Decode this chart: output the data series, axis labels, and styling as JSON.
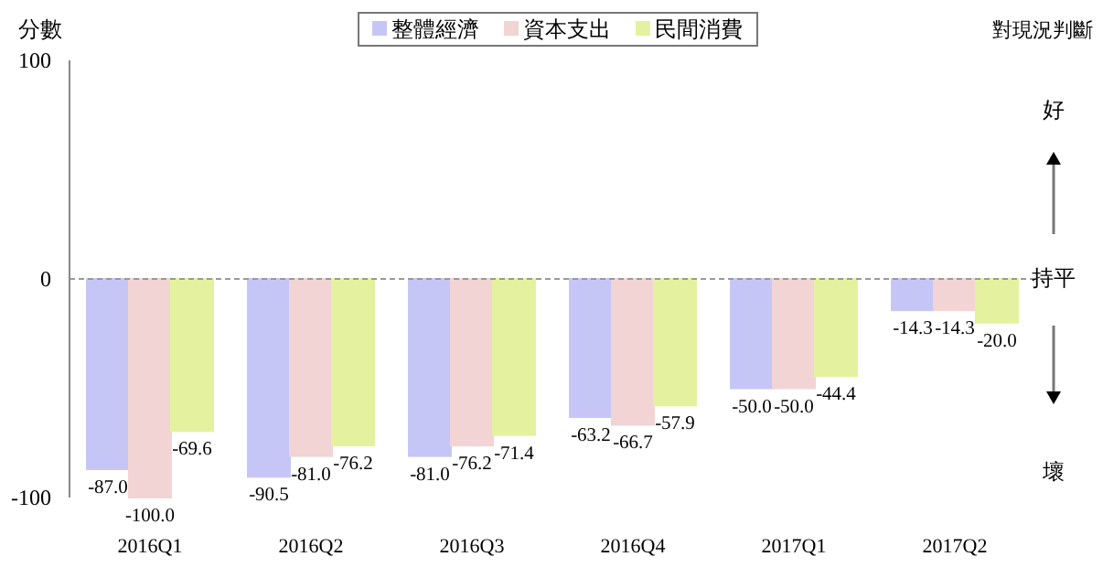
{
  "chart_data": {
    "type": "bar",
    "ylabel": "分數",
    "categories": [
      "2016Q1",
      "2016Q2",
      "2016Q3",
      "2016Q4",
      "2017Q1",
      "2017Q2"
    ],
    "series": [
      {
        "name": "整體經濟",
        "color": "#c6c6f6",
        "values": [
          -87.0,
          -90.5,
          -81.0,
          -63.2,
          -50.0,
          -14.3
        ],
        "value_labels": [
          "-87.0",
          "-90.5",
          "-81.0",
          "-63.2",
          "-50.0",
          "-14.3"
        ]
      },
      {
        "name": "資本支出",
        "color": "#f2d4d4",
        "values": [
          -100.0,
          -81.0,
          -76.2,
          -66.7,
          -50.0,
          -14.3
        ],
        "value_labels": [
          "-100.0",
          "-81.0",
          "-76.2",
          "-66.7",
          "-50.0",
          "-14.3"
        ]
      },
      {
        "name": "民間消費",
        "color": "#e4f2a0",
        "values": [
          -69.6,
          -76.2,
          -71.4,
          -57.9,
          -44.4,
          -20.0
        ],
        "value_labels": [
          "-69.6",
          "-76.2",
          "-71.4",
          "-57.9",
          "-44.4",
          "-20.0"
        ]
      }
    ],
    "ylim": [
      -100,
      100
    ],
    "yticks": [
      -100,
      0,
      100
    ],
    "grid": false,
    "legend": "top",
    "ref_lines": [
      {
        "axis": "y",
        "value": 0,
        "color": "#999999",
        "line_style": "dashed"
      }
    ],
    "annotations": [
      "對現況判斷",
      "好",
      "持平",
      "壞"
    ]
  }
}
